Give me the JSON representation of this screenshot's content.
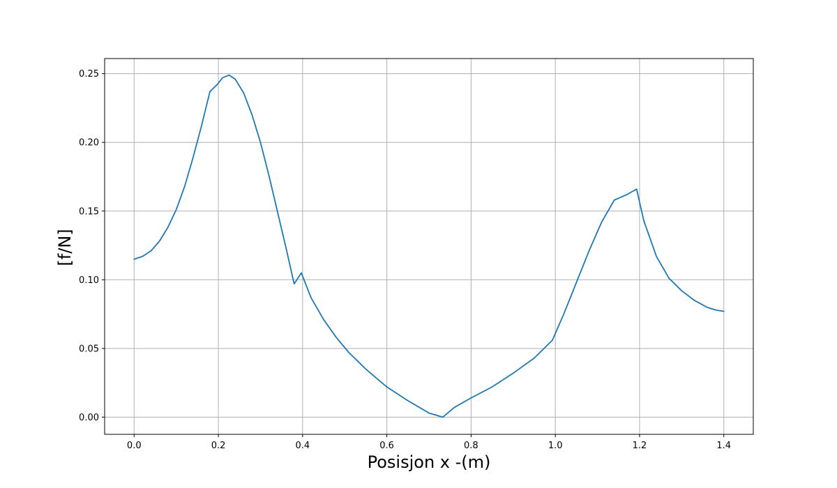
{
  "chart_data": {
    "type": "line",
    "title": "",
    "xlabel": "Posisjon x -(m)",
    "ylabel": "[f/N]",
    "xlim": [
      -0.07,
      1.47
    ],
    "ylim": [
      -0.0125,
      0.261
    ],
    "grid": true,
    "x_ticks": [
      "0.0",
      "0.2",
      "0.4",
      "0.6",
      "0.8",
      "1.0",
      "1.2",
      "1.4"
    ],
    "x_tick_values": [
      0.0,
      0.2,
      0.4,
      0.6,
      0.8,
      1.0,
      1.2,
      1.4
    ],
    "y_ticks": [
      "0.00",
      "0.05",
      "0.10",
      "0.15",
      "0.20",
      "0.25"
    ],
    "y_tick_values": [
      0.0,
      0.05,
      0.1,
      0.15,
      0.2,
      0.25
    ],
    "line_color": "#1f77b4",
    "series": [
      {
        "x": [
          0.0,
          0.02,
          0.04,
          0.06,
          0.08,
          0.1,
          0.12,
          0.14,
          0.16,
          0.18,
          0.197,
          0.21,
          0.225,
          0.24,
          0.26,
          0.28,
          0.3,
          0.32,
          0.34,
          0.36,
          0.38,
          0.397,
          0.42,
          0.45,
          0.48,
          0.51,
          0.55,
          0.6,
          0.65,
          0.7,
          0.733,
          0.76,
          0.8,
          0.85,
          0.9,
          0.95,
          0.993,
          1.02,
          1.05,
          1.08,
          1.11,
          1.14,
          1.17,
          1.193,
          1.21,
          1.24,
          1.27,
          1.3,
          1.33,
          1.36,
          1.38,
          1.4
        ],
        "y": [
          0.115,
          0.117,
          0.121,
          0.128,
          0.138,
          0.151,
          0.168,
          0.189,
          0.212,
          0.237,
          0.242,
          0.247,
          0.249,
          0.246,
          0.236,
          0.22,
          0.2,
          0.176,
          0.15,
          0.124,
          0.097,
          0.105,
          0.087,
          0.071,
          0.058,
          0.047,
          0.035,
          0.022,
          0.012,
          0.003,
          0.0,
          0.007,
          0.014,
          0.022,
          0.032,
          0.043,
          0.056,
          0.075,
          0.098,
          0.121,
          0.142,
          0.158,
          0.162,
          0.166,
          0.143,
          0.117,
          0.101,
          0.092,
          0.085,
          0.08,
          0.078,
          0.077
        ]
      }
    ]
  }
}
